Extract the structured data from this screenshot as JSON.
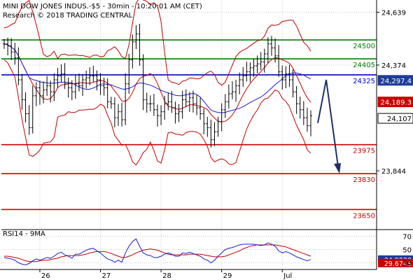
{
  "header": {
    "instrument": "MINI DOW JONES INDUS.-$5 - 30min - 10:20:01 AM (CET)",
    "research": "Research © 2018 TRADING CENTRAL"
  },
  "colors": {
    "grid": "#c8c8c8",
    "candle": "#000000",
    "band": "#c00000",
    "ma_blue": "#1a1ad0",
    "support_green": "#008000",
    "resistance_red": "#cc0000",
    "pivot_blue": "#0000cc",
    "arrow": "#1f2f66",
    "badge_blue": "#1e3c96",
    "badge_red": "#c80000"
  },
  "chart_data": [
    {
      "type": "candlestick",
      "title": "MINI DOW JONES INDUS.-$5 - 30min",
      "x_ticks": [
        "26",
        "27",
        "28",
        "29",
        "Jul"
      ],
      "y_ticks": [
        24639,
        24374,
        23844
      ],
      "ylim": [
        23560,
        24700
      ],
      "horizontal_levels": [
        {
          "value": 24500,
          "label": "24500",
          "color": "#008000"
        },
        {
          "value": 24405,
          "label": "24405",
          "color": "#008000"
        },
        {
          "value": 24325,
          "label": "24325",
          "color": "#0000cc"
        },
        {
          "value": 23975,
          "label": "23975",
          "color": "#cc0000"
        },
        {
          "value": 23830,
          "label": "23830",
          "color": "#cc0000"
        },
        {
          "value": 23650,
          "label": "23650",
          "color": "#cc0000"
        }
      ],
      "price_badges": [
        {
          "value": 24297.4,
          "label": "24,297.4",
          "color": "#1e3c96"
        },
        {
          "value": 24189.3,
          "label": "24,189.3",
          "color": "#c80000"
        },
        {
          "value": 24107,
          "label": "24,107",
          "color": "#ffffff"
        }
      ],
      "close_series": [
        24480,
        24470,
        24440,
        24410,
        24300,
        24200,
        24130,
        24060,
        24220,
        24260,
        24220,
        24250,
        24270,
        24240,
        24300,
        24320,
        24330,
        24280,
        24260,
        24240,
        24280,
        24270,
        24300,
        24310,
        24320,
        24320,
        24300,
        24270,
        24260,
        24190,
        24180,
        24110,
        24140,
        24100,
        24280,
        24400,
        24490,
        24530,
        24400,
        24200,
        24180,
        24180,
        24150,
        24120,
        24140,
        24180,
        24190,
        24160,
        24130,
        24140,
        24200,
        24190,
        24210,
        24180,
        24160,
        24130,
        24080,
        24060,
        24000,
        24040,
        24090,
        24150,
        24190,
        24230,
        24240,
        24270,
        24300,
        24320,
        24340,
        24360,
        24370,
        24380,
        24390,
        24430,
        24480,
        24460,
        24420,
        24340,
        24300,
        24330,
        24300,
        24240,
        24180,
        24150,
        24110,
        24070,
        24120
      ],
      "forecast_arrow": {
        "from": 24140,
        "to": 23830
      }
    },
    {
      "type": "line",
      "title": "RSI14 - 9MA",
      "y_ticks": [
        70,
        50,
        30
      ],
      "ylim": [
        20,
        80
      ],
      "series": [
        {
          "name": "RSI14",
          "values": [
            38,
            37,
            36,
            34,
            30,
            28,
            27,
            29,
            33,
            36,
            34,
            36,
            38,
            37,
            40,
            44,
            46,
            42,
            40,
            37,
            43,
            43,
            46,
            49,
            51,
            52,
            48,
            45,
            40,
            36,
            34,
            31,
            34,
            31,
            45,
            55,
            62,
            66,
            55,
            45,
            42,
            41,
            38,
            38,
            40,
            43,
            45,
            43,
            40,
            40,
            45,
            44,
            46,
            44,
            42,
            40,
            36,
            34,
            30,
            34,
            40,
            45,
            50,
            52,
            53,
            55,
            57,
            58,
            58,
            58,
            58,
            57,
            56,
            57,
            60,
            58,
            55,
            48,
            45,
            47,
            45,
            42,
            39,
            37,
            35,
            33,
            35
          ]
        },
        {
          "name": "9MA",
          "values": [
            40,
            40,
            39,
            38,
            37,
            35,
            33,
            32,
            32,
            32,
            33,
            34,
            34,
            35,
            36,
            37,
            39,
            40,
            41,
            41,
            41,
            41,
            42,
            43,
            45,
            46,
            47,
            47,
            47,
            46,
            44,
            42,
            40,
            38,
            38,
            40,
            42,
            45,
            47,
            49,
            50,
            51,
            50,
            49,
            47,
            45,
            43,
            42,
            42,
            42,
            42,
            42,
            43,
            43,
            43,
            43,
            42,
            41,
            40,
            39,
            39,
            39,
            40,
            42,
            44,
            46,
            48,
            51,
            53,
            55,
            56,
            57,
            57,
            57,
            57,
            57,
            57,
            56,
            55,
            54,
            52,
            50,
            48,
            46,
            44,
            42,
            40
          ]
        }
      ],
      "price_badges": [
        {
          "value": 34.9238,
          "label": "34.9238",
          "color": "#1e3c96"
        },
        {
          "value": 29.6748,
          "label": "29.6748",
          "color": "#c80000"
        }
      ]
    }
  ]
}
